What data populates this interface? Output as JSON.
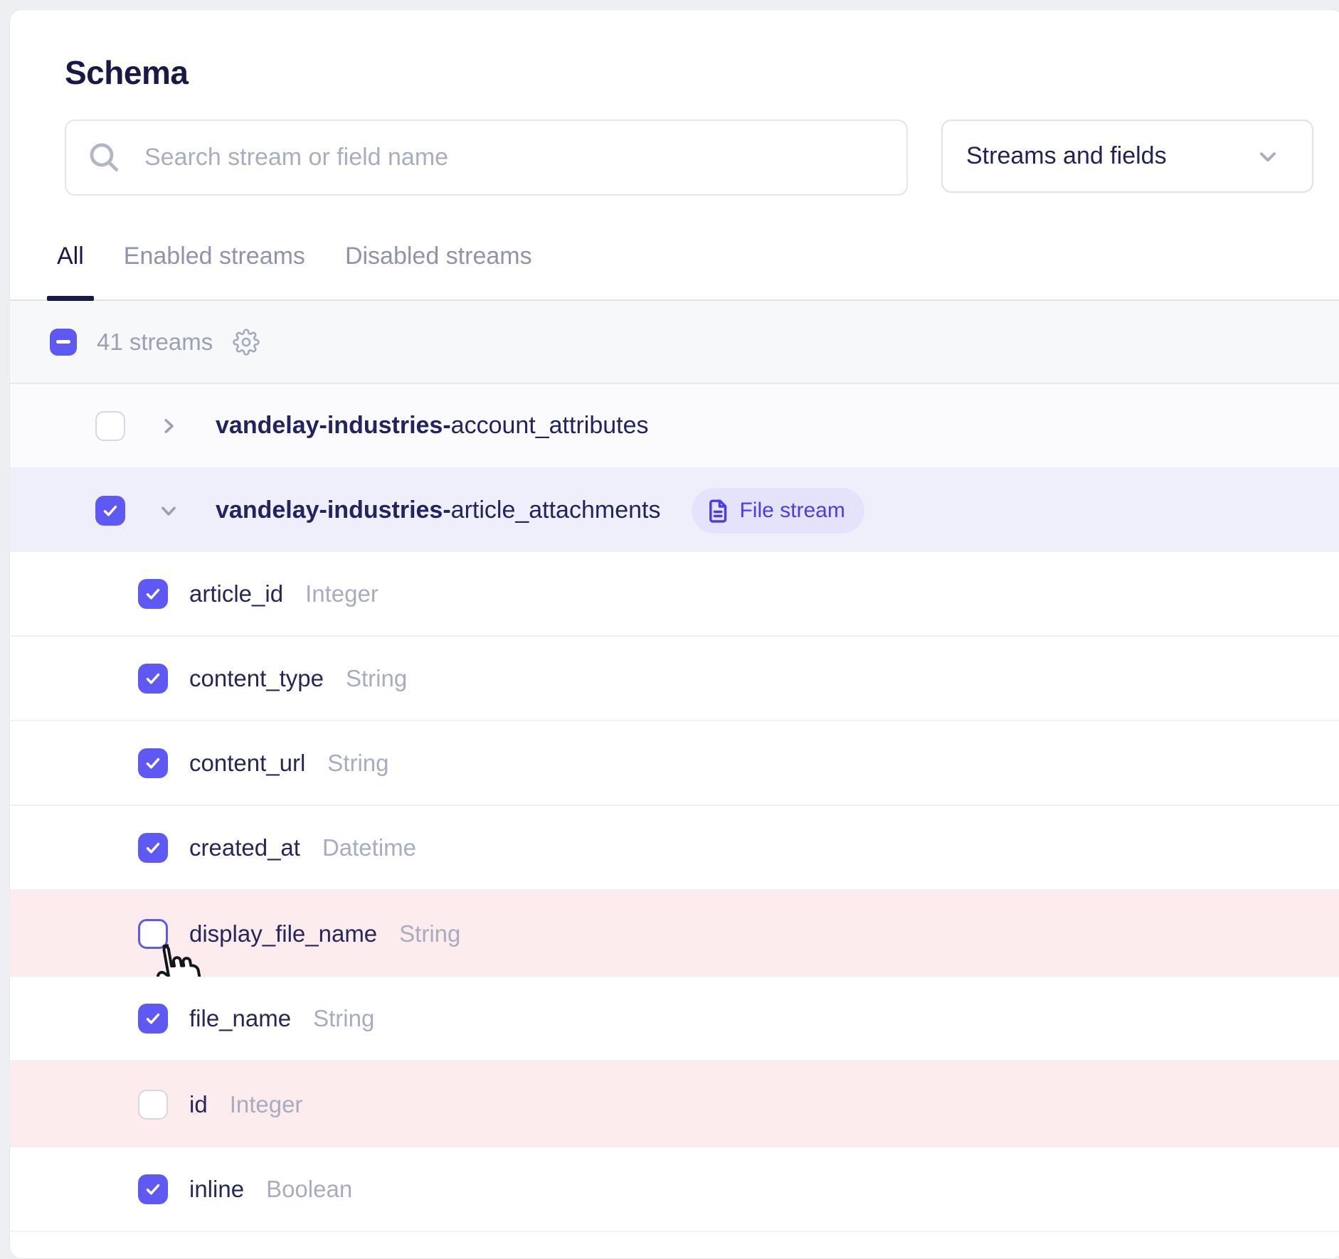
{
  "title": "Schema",
  "search": {
    "placeholder": "Search stream or field name"
  },
  "filter_dropdown": {
    "value": "Streams and fields"
  },
  "tabs": [
    {
      "label": "All",
      "active": true
    },
    {
      "label": "Enabled streams",
      "active": false
    },
    {
      "label": "Disabled streams",
      "active": false
    }
  ],
  "list_header": {
    "streams_count": "41 streams",
    "select_all_state": "indeterminate"
  },
  "streams": [
    {
      "name_prefix": "vandelay-industries-",
      "name_suffix": "account_attributes",
      "checked": false,
      "expanded": false,
      "fields": []
    },
    {
      "name_prefix": "vandelay-industries-",
      "name_suffix": "article_attachments",
      "checked": true,
      "expanded": true,
      "badge": "File stream",
      "fields": [
        {
          "name": "article_id",
          "type": "Integer",
          "checked": true,
          "removed": false,
          "hover": false
        },
        {
          "name": "content_type",
          "type": "String",
          "checked": true,
          "removed": false,
          "hover": false
        },
        {
          "name": "content_url",
          "type": "String",
          "checked": true,
          "removed": false,
          "hover": false
        },
        {
          "name": "created_at",
          "type": "Datetime",
          "checked": true,
          "removed": false,
          "hover": false
        },
        {
          "name": "display_file_name",
          "type": "String",
          "checked": false,
          "removed": true,
          "hover": true
        },
        {
          "name": "file_name",
          "type": "String",
          "checked": true,
          "removed": false,
          "hover": false
        },
        {
          "name": "id",
          "type": "Integer",
          "checked": false,
          "removed": true,
          "hover": false
        },
        {
          "name": "inline",
          "type": "Boolean",
          "checked": true,
          "removed": false,
          "hover": false
        }
      ]
    }
  ],
  "colors": {
    "accent": "#5e58f4",
    "badge_purple": "#4c3ce8",
    "badge_bg": "#e5e3fb",
    "selected_row_bg": "#efeefb",
    "removed_row_bg": "#fdecee",
    "heading_text": "#191947",
    "muted_text": "#9ba0b3"
  }
}
